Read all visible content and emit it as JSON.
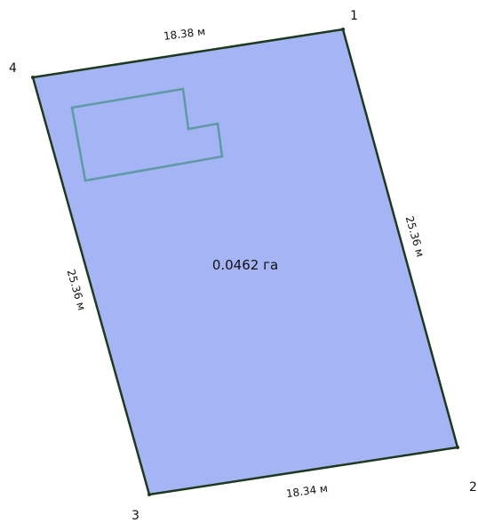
{
  "parcel": {
    "area_label": "0.0462 га",
    "fill_color": "#a5b4f5",
    "outline_color": "#1e3a1e",
    "vertex_labels": {
      "v1": "1",
      "v2": "2",
      "v3": "3",
      "v4": "4"
    },
    "edge_lengths": {
      "edge_4_1": "18.38 м",
      "edge_1_2": "25.36 м",
      "edge_3_2": "18.34 м",
      "edge_4_3": "25.36 м"
    }
  },
  "building": {
    "outline_color": "#5e9aa3"
  }
}
